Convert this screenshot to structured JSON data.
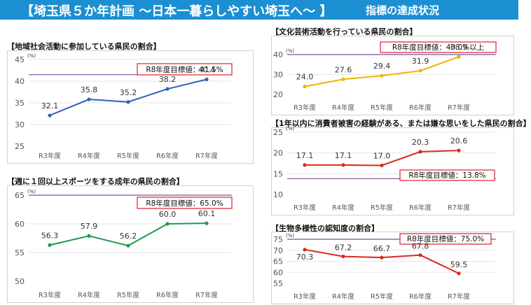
{
  "header": {
    "title": "【埼玉県５か年計画 ～日本一暮らしやすい埼玉へ～ 】",
    "subtitle": "指標の達成状況"
  },
  "colors": {
    "banner": "#1b8fd2",
    "target_line": "#7b4fa0",
    "target_box_border": "#e0303a",
    "blue": "#2f63b7",
    "green": "#1f9a4a",
    "gold": "#f0b400",
    "red": "#d82a1e"
  },
  "chart_data": [
    {
      "id": "community",
      "type": "line",
      "title": "【地域社会活動に参加している県民の割合】",
      "categories": [
        "R3年度",
        "R4年度",
        "R5年度",
        "R6年度",
        "R7年度"
      ],
      "values": [
        32.1,
        35.8,
        35.2,
        38.2,
        40.4
      ],
      "value_labels": [
        "32.1",
        "35.8",
        "35.2",
        "38.2",
        "40.4"
      ],
      "unit": "(%)",
      "ylim": [
        25,
        45
      ],
      "yticks": [
        25,
        30,
        35,
        40,
        45
      ],
      "target": 41.5,
      "target_label": "R8年度目標値：41.5%",
      "color": "#2f63b7"
    },
    {
      "id": "sports",
      "type": "line",
      "title": "【週に１回以上スポーツをする成年の県民の割合】",
      "categories": [
        "R3年度",
        "R4年度",
        "R5年度",
        "R6年度",
        "R7年度"
      ],
      "values": [
        56.3,
        57.9,
        56.2,
        60.0,
        60.1
      ],
      "value_labels": [
        "56.3",
        "57.9",
        "56.2",
        "60.0",
        "60.1"
      ],
      "unit": "(%)",
      "ylim": [
        50,
        65
      ],
      "yticks": [
        50,
        55,
        60,
        65
      ],
      "target": 65.0,
      "target_label": "R8年度目標値：65.0%",
      "color": "#1f9a4a"
    },
    {
      "id": "culture",
      "type": "line",
      "title": "【文化芸術活動を行っている県民の割合】",
      "categories": [
        "R3年度",
        "R4年度",
        "R5年度",
        "R6年度",
        "R7年度"
      ],
      "values": [
        24.0,
        27.6,
        29.4,
        31.9,
        38.9
      ],
      "value_labels": [
        "24.0",
        "27.6",
        "29.4",
        "31.9",
        "38.9"
      ],
      "unit": "(%)",
      "ylim": [
        20,
        40
      ],
      "yticks": [
        20,
        30,
        40
      ],
      "target": 40.0,
      "target_label": "R8年度目標値：40.0%以上",
      "color": "#f0b400"
    },
    {
      "id": "consumer",
      "type": "line",
      "title": "【1年以内に消費者被害の経験がある、または嫌な思いをした県民の割合】",
      "categories": [
        "R3年度",
        "R4年度",
        "R5年度",
        "R6年度",
        "R7年度"
      ],
      "values": [
        17.1,
        17.1,
        17.0,
        20.3,
        20.6
      ],
      "value_labels": [
        "17.1",
        "17.1",
        "17.0",
        "20.3",
        "20.6"
      ],
      "unit": "(%)",
      "ylim": [
        10,
        25
      ],
      "yticks": [
        10,
        15,
        20,
        25
      ],
      "target": 13.8,
      "target_label": "R8年度目標値：13.8%",
      "color": "#d82a1e"
    },
    {
      "id": "biodiversity",
      "type": "line",
      "title": "【生物多様性の認知度の割合】",
      "categories": [
        "R3年度",
        "R4年度",
        "R5年度",
        "R6年度",
        "R7年度"
      ],
      "values": [
        70.3,
        67.2,
        66.7,
        67.8,
        59.5
      ],
      "value_labels": [
        "70.3",
        "67.2",
        "66.7",
        "67.8",
        "59.5"
      ],
      "unit": "(%)",
      "ylim": [
        55,
        75
      ],
      "yticks": [
        55,
        60,
        65,
        70,
        75
      ],
      "target": 75.0,
      "target_label": "R8年度目標値：75.0%",
      "color": "#d82a1e"
    }
  ]
}
